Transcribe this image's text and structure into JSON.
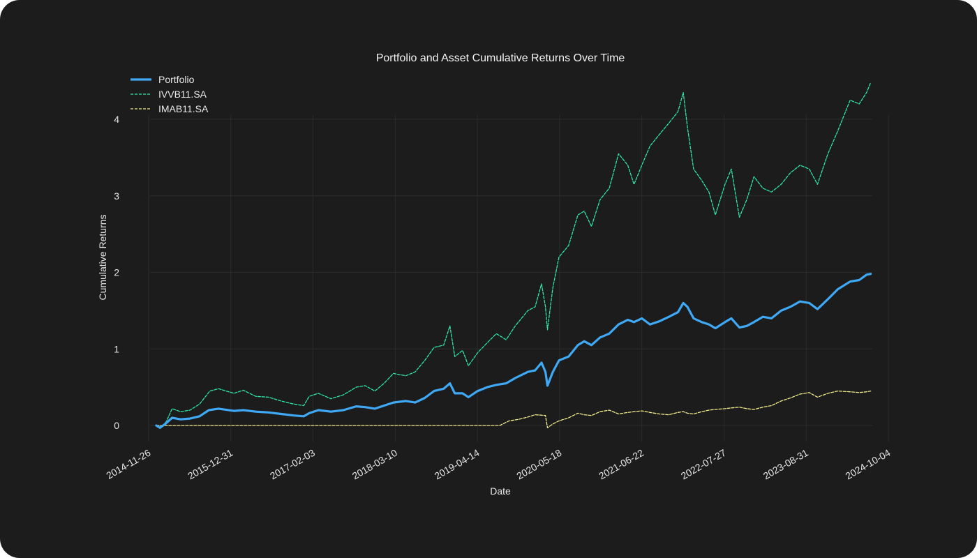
{
  "chart_data": {
    "type": "line",
    "title": "Portfolio and Asset Cumulative Returns Over Time",
    "xlabel": "Date",
    "ylabel": "Cumulative Returns",
    "x_ticks": [
      "2014-11-26",
      "2015-12-31",
      "2017-02-03",
      "2018-03-10",
      "2019-04-14",
      "2020-05-18",
      "2021-06-22",
      "2022-07-27",
      "2023-08-31",
      "2024-10-04"
    ],
    "y_ticks": [
      0,
      1,
      2,
      3,
      4
    ],
    "xlim": [
      "2014-11-26",
      "2024-10-04"
    ],
    "ylim": [
      -0.2,
      4.7
    ],
    "grid": true,
    "legend_position": "top-left",
    "colors": {
      "background": "#1c1c1c",
      "grid": "#2c2c2c",
      "portfolio": "#3fa9f5",
      "ivvb11": "#2ee8a5",
      "imab11": "#f2ec8c"
    },
    "series": [
      {
        "name": "Portfolio",
        "style": "solid",
        "color": "#3fa9f5",
        "points": [
          [
            "2015-01-02",
            0.0
          ],
          [
            "2015-01-20",
            -0.03
          ],
          [
            "2015-02-15",
            0.02
          ],
          [
            "2015-03-20",
            0.1
          ],
          [
            "2015-05-01",
            0.08
          ],
          [
            "2015-06-15",
            0.09
          ],
          [
            "2015-08-01",
            0.12
          ],
          [
            "2015-09-15",
            0.2
          ],
          [
            "2015-11-01",
            0.22
          ],
          [
            "2016-01-15",
            0.19
          ],
          [
            "2016-03-01",
            0.2
          ],
          [
            "2016-05-01",
            0.18
          ],
          [
            "2016-07-01",
            0.17
          ],
          [
            "2016-09-01",
            0.15
          ],
          [
            "2016-11-01",
            0.13
          ],
          [
            "2016-12-20",
            0.12
          ],
          [
            "2017-01-15",
            0.16
          ],
          [
            "2017-03-01",
            0.2
          ],
          [
            "2017-05-01",
            0.18
          ],
          [
            "2017-07-01",
            0.2
          ],
          [
            "2017-09-01",
            0.25
          ],
          [
            "2017-10-15",
            0.24
          ],
          [
            "2017-12-01",
            0.22
          ],
          [
            "2018-01-15",
            0.26
          ],
          [
            "2018-03-01",
            0.3
          ],
          [
            "2018-05-01",
            0.32
          ],
          [
            "2018-06-15",
            0.3
          ],
          [
            "2018-08-01",
            0.36
          ],
          [
            "2018-09-15",
            0.45
          ],
          [
            "2018-11-01",
            0.48
          ],
          [
            "2018-12-01",
            0.55
          ],
          [
            "2018-12-25",
            0.42
          ],
          [
            "2019-02-01",
            0.42
          ],
          [
            "2019-03-01",
            0.37
          ],
          [
            "2019-04-15",
            0.45
          ],
          [
            "2019-06-01",
            0.5
          ],
          [
            "2019-07-15",
            0.53
          ],
          [
            "2019-09-01",
            0.55
          ],
          [
            "2019-10-15",
            0.62
          ],
          [
            "2019-12-15",
            0.7
          ],
          [
            "2020-01-20",
            0.72
          ],
          [
            "2020-02-20",
            0.82
          ],
          [
            "2020-03-10",
            0.7
          ],
          [
            "2020-03-20",
            0.52
          ],
          [
            "2020-04-15",
            0.7
          ],
          [
            "2020-05-15",
            0.85
          ],
          [
            "2020-07-01",
            0.9
          ],
          [
            "2020-08-15",
            1.05
          ],
          [
            "2020-09-15",
            1.1
          ],
          [
            "2020-10-20",
            1.05
          ],
          [
            "2020-12-01",
            1.15
          ],
          [
            "2021-01-15",
            1.2
          ],
          [
            "2021-03-01",
            1.32
          ],
          [
            "2021-04-15",
            1.38
          ],
          [
            "2021-05-15",
            1.35
          ],
          [
            "2021-06-22",
            1.4
          ],
          [
            "2021-08-01",
            1.32
          ],
          [
            "2021-09-15",
            1.36
          ],
          [
            "2021-11-01",
            1.42
          ],
          [
            "2021-12-15",
            1.48
          ],
          [
            "2022-01-10",
            1.6
          ],
          [
            "2022-01-30",
            1.55
          ],
          [
            "2022-03-01",
            1.4
          ],
          [
            "2022-04-10",
            1.35
          ],
          [
            "2022-05-15",
            1.32
          ],
          [
            "2022-06-15",
            1.27
          ],
          [
            "2022-08-01",
            1.35
          ],
          [
            "2022-09-01",
            1.4
          ],
          [
            "2022-10-10",
            1.28
          ],
          [
            "2022-11-15",
            1.3
          ],
          [
            "2022-12-20",
            1.35
          ],
          [
            "2023-02-01",
            1.42
          ],
          [
            "2023-03-15",
            1.4
          ],
          [
            "2023-05-01",
            1.5
          ],
          [
            "2023-06-15",
            1.55
          ],
          [
            "2023-08-01",
            1.62
          ],
          [
            "2023-09-15",
            1.6
          ],
          [
            "2023-10-25",
            1.52
          ],
          [
            "2023-12-15",
            1.65
          ],
          [
            "2024-02-01",
            1.78
          ],
          [
            "2024-04-01",
            1.88
          ],
          [
            "2024-05-15",
            1.9
          ],
          [
            "2024-06-20",
            1.97
          ],
          [
            "2024-07-10",
            1.98
          ]
        ]
      },
      {
        "name": "IVVB11.SA",
        "style": "dashed",
        "color": "#2ee8a5",
        "points": [
          [
            "2015-01-02",
            0.0
          ],
          [
            "2015-01-20",
            -0.04
          ],
          [
            "2015-02-20",
            0.05
          ],
          [
            "2015-03-20",
            0.22
          ],
          [
            "2015-05-01",
            0.18
          ],
          [
            "2015-06-15",
            0.2
          ],
          [
            "2015-08-01",
            0.28
          ],
          [
            "2015-09-20",
            0.45
          ],
          [
            "2015-11-01",
            0.48
          ],
          [
            "2016-01-15",
            0.42
          ],
          [
            "2016-03-01",
            0.46
          ],
          [
            "2016-05-01",
            0.38
          ],
          [
            "2016-07-01",
            0.37
          ],
          [
            "2016-09-01",
            0.32
          ],
          [
            "2016-11-01",
            0.28
          ],
          [
            "2016-12-20",
            0.26
          ],
          [
            "2017-01-15",
            0.38
          ],
          [
            "2017-03-01",
            0.42
          ],
          [
            "2017-05-01",
            0.35
          ],
          [
            "2017-07-01",
            0.4
          ],
          [
            "2017-09-01",
            0.5
          ],
          [
            "2017-10-15",
            0.52
          ],
          [
            "2017-12-01",
            0.45
          ],
          [
            "2018-01-15",
            0.55
          ],
          [
            "2018-03-01",
            0.68
          ],
          [
            "2018-05-01",
            0.65
          ],
          [
            "2018-06-15",
            0.7
          ],
          [
            "2018-08-01",
            0.85
          ],
          [
            "2018-09-15",
            1.02
          ],
          [
            "2018-11-01",
            1.05
          ],
          [
            "2018-12-01",
            1.3
          ],
          [
            "2018-12-25",
            0.9
          ],
          [
            "2019-02-01",
            0.98
          ],
          [
            "2019-03-01",
            0.78
          ],
          [
            "2019-04-15",
            0.95
          ],
          [
            "2019-06-01",
            1.08
          ],
          [
            "2019-07-15",
            1.2
          ],
          [
            "2019-09-01",
            1.12
          ],
          [
            "2019-10-15",
            1.3
          ],
          [
            "2019-12-15",
            1.5
          ],
          [
            "2020-01-20",
            1.55
          ],
          [
            "2020-02-20",
            1.85
          ],
          [
            "2020-03-10",
            1.55
          ],
          [
            "2020-03-20",
            1.25
          ],
          [
            "2020-04-15",
            1.8
          ],
          [
            "2020-05-15",
            2.2
          ],
          [
            "2020-07-01",
            2.35
          ],
          [
            "2020-08-15",
            2.75
          ],
          [
            "2020-09-15",
            2.8
          ],
          [
            "2020-10-20",
            2.6
          ],
          [
            "2020-12-01",
            2.95
          ],
          [
            "2021-01-15",
            3.1
          ],
          [
            "2021-03-01",
            3.55
          ],
          [
            "2021-04-15",
            3.4
          ],
          [
            "2021-05-15",
            3.15
          ],
          [
            "2021-06-22",
            3.4
          ],
          [
            "2021-08-01",
            3.65
          ],
          [
            "2021-09-15",
            3.8
          ],
          [
            "2021-11-01",
            3.95
          ],
          [
            "2021-12-15",
            4.1
          ],
          [
            "2022-01-10",
            4.35
          ],
          [
            "2022-01-30",
            3.9
          ],
          [
            "2022-03-01",
            3.35
          ],
          [
            "2022-04-10",
            3.2
          ],
          [
            "2022-05-15",
            3.05
          ],
          [
            "2022-06-15",
            2.75
          ],
          [
            "2022-08-01",
            3.15
          ],
          [
            "2022-09-01",
            3.35
          ],
          [
            "2022-10-10",
            2.72
          ],
          [
            "2022-11-15",
            2.95
          ],
          [
            "2022-12-20",
            3.25
          ],
          [
            "2023-02-01",
            3.1
          ],
          [
            "2023-03-15",
            3.05
          ],
          [
            "2023-05-01",
            3.15
          ],
          [
            "2023-06-15",
            3.3
          ],
          [
            "2023-08-01",
            3.4
          ],
          [
            "2023-09-15",
            3.35
          ],
          [
            "2023-10-25",
            3.15
          ],
          [
            "2023-12-15",
            3.55
          ],
          [
            "2024-02-01",
            3.85
          ],
          [
            "2024-04-01",
            4.25
          ],
          [
            "2024-05-15",
            4.2
          ],
          [
            "2024-06-20",
            4.35
          ],
          [
            "2024-07-10",
            4.48
          ]
        ]
      },
      {
        "name": "IMAB11.SA",
        "style": "dashed",
        "color": "#f2ec8c",
        "points": [
          [
            "2015-01-02",
            0.0
          ],
          [
            "2019-08-01",
            0.0
          ],
          [
            "2019-09-15",
            0.06
          ],
          [
            "2019-11-01",
            0.08
          ],
          [
            "2019-12-15",
            0.11
          ],
          [
            "2020-01-20",
            0.14
          ],
          [
            "2020-03-10",
            0.13
          ],
          [
            "2020-03-20",
            -0.03
          ],
          [
            "2020-04-15",
            0.02
          ],
          [
            "2020-05-15",
            0.06
          ],
          [
            "2020-07-01",
            0.1
          ],
          [
            "2020-08-15",
            0.16
          ],
          [
            "2020-09-15",
            0.14
          ],
          [
            "2020-10-20",
            0.13
          ],
          [
            "2020-12-01",
            0.18
          ],
          [
            "2021-01-15",
            0.2
          ],
          [
            "2021-03-01",
            0.15
          ],
          [
            "2021-04-15",
            0.17
          ],
          [
            "2021-05-15",
            0.18
          ],
          [
            "2021-06-22",
            0.19
          ],
          [
            "2021-08-01",
            0.17
          ],
          [
            "2021-09-15",
            0.15
          ],
          [
            "2021-11-01",
            0.14
          ],
          [
            "2021-12-15",
            0.17
          ],
          [
            "2022-01-10",
            0.18
          ],
          [
            "2022-01-30",
            0.16
          ],
          [
            "2022-03-01",
            0.15
          ],
          [
            "2022-04-10",
            0.18
          ],
          [
            "2022-05-15",
            0.2
          ],
          [
            "2022-06-15",
            0.21
          ],
          [
            "2022-08-01",
            0.22
          ],
          [
            "2022-09-01",
            0.23
          ],
          [
            "2022-10-10",
            0.24
          ],
          [
            "2022-11-15",
            0.22
          ],
          [
            "2022-12-20",
            0.21
          ],
          [
            "2023-02-01",
            0.24
          ],
          [
            "2023-03-15",
            0.26
          ],
          [
            "2023-05-01",
            0.32
          ],
          [
            "2023-06-15",
            0.36
          ],
          [
            "2023-08-01",
            0.41
          ],
          [
            "2023-09-15",
            0.43
          ],
          [
            "2023-10-25",
            0.37
          ],
          [
            "2023-12-15",
            0.42
          ],
          [
            "2024-02-01",
            0.45
          ],
          [
            "2024-04-01",
            0.44
          ],
          [
            "2024-05-15",
            0.43
          ],
          [
            "2024-06-20",
            0.44
          ],
          [
            "2024-07-10",
            0.45
          ]
        ]
      }
    ]
  }
}
